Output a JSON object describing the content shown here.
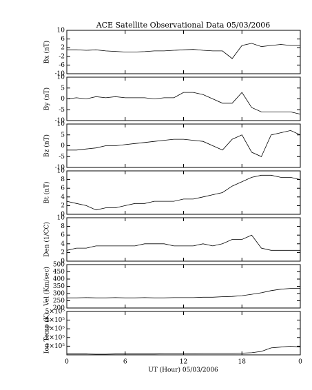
{
  "title": "ACE Satellite Observational Data   05/03/2006",
  "xlabel": "UT (Hour)  05/03/2006",
  "xlim": [
    0,
    24
  ],
  "xticks": [
    0,
    6,
    12,
    18,
    {
      "value": 24,
      "label": "0"
    }
  ],
  "chart_data": [
    {
      "type": "line",
      "ylabel": "Bx (nT)",
      "ylim": [
        -10,
        10
      ],
      "yticks": [
        -10,
        -6,
        -2,
        2,
        6,
        10
      ],
      "x": [
        0,
        1,
        2,
        3,
        4,
        5,
        6,
        7,
        8,
        9,
        10,
        11,
        12,
        13,
        14,
        15,
        16,
        17,
        18,
        19,
        20,
        21,
        22,
        23,
        24
      ],
      "series": [
        {
          "color": "#000000",
          "values": [
            1,
            1,
            0.8,
            1,
            0.5,
            0.3,
            0,
            0,
            0.2,
            0.5,
            0.5,
            0.8,
            1,
            1.2,
            0.8,
            0.5,
            0.5,
            -3,
            3,
            4,
            2.5,
            3,
            3.5,
            3,
            3
          ]
        }
      ]
    },
    {
      "type": "line",
      "ylabel": "By (nT)",
      "ylim": [
        -10,
        10
      ],
      "yticks": [
        -10,
        -5,
        0,
        5,
        10
      ],
      "x": [
        0,
        1,
        2,
        3,
        4,
        5,
        6,
        7,
        8,
        9,
        10,
        11,
        12,
        13,
        14,
        15,
        16,
        17,
        18,
        19,
        20,
        21,
        22,
        23,
        24
      ],
      "series": [
        {
          "color": "#000000",
          "values": [
            0,
            0.5,
            0,
            1,
            0.5,
            1,
            0.5,
            0.5,
            0.5,
            0,
            0.5,
            0.5,
            3,
            3,
            2,
            0,
            -2,
            -2,
            3,
            -4,
            -6,
            -6,
            -6,
            -6,
            -7
          ]
        }
      ]
    },
    {
      "type": "line",
      "ylabel": "Bz (nT)",
      "ylim": [
        -10,
        10
      ],
      "yticks": [
        -10,
        -5,
        0,
        5,
        10
      ],
      "x": [
        0,
        1,
        2,
        3,
        4,
        5,
        6,
        7,
        8,
        9,
        10,
        11,
        12,
        13,
        14,
        15,
        16,
        17,
        18,
        19,
        20,
        21,
        22,
        23,
        24
      ],
      "series": [
        {
          "color": "#000000",
          "values": [
            -2,
            -2,
            -1.5,
            -1,
            0,
            0,
            0.5,
            1,
            1.5,
            2,
            2.5,
            3,
            3,
            2.5,
            2,
            0,
            -2,
            3,
            5,
            -3,
            -5,
            5,
            6,
            7,
            5
          ]
        }
      ]
    },
    {
      "type": "line",
      "ylabel": "Bt (nT)",
      "ylim": [
        0,
        10
      ],
      "yticks": [
        0,
        2,
        4,
        6,
        8,
        10
      ],
      "x": [
        0,
        1,
        2,
        3,
        4,
        5,
        6,
        7,
        8,
        9,
        10,
        11,
        12,
        13,
        14,
        15,
        16,
        17,
        18,
        19,
        20,
        21,
        22,
        23,
        24
      ],
      "series": [
        {
          "color": "#000000",
          "values": [
            3,
            2.5,
            2,
            1,
            1.5,
            1.5,
            2,
            2.5,
            2.5,
            3,
            3,
            3,
            3.5,
            3.5,
            4,
            4.5,
            5,
            6.5,
            7.5,
            8.5,
            9,
            9,
            8.5,
            8.5,
            8
          ]
        }
      ]
    },
    {
      "type": "line",
      "ylabel": "Den (1/CC)",
      "ylim": [
        0,
        10
      ],
      "yticks": [
        0,
        2,
        4,
        6,
        8,
        10
      ],
      "x": [
        0,
        1,
        2,
        3,
        4,
        5,
        6,
        7,
        8,
        9,
        10,
        11,
        12,
        13,
        14,
        15,
        16,
        17,
        18,
        19,
        20,
        21,
        22,
        23,
        24
      ],
      "series": [
        {
          "color": "#000000",
          "values": [
            2.5,
            3,
            3,
            3.5,
            3.5,
            3.5,
            3.5,
            3.5,
            4,
            4,
            4,
            3.5,
            3.5,
            3.5,
            4,
            3.5,
            4,
            5,
            5,
            6,
            3,
            2.5,
            2.5,
            2.5,
            2.5
          ]
        }
      ]
    },
    {
      "type": "line",
      "ylabel": "Vel (Km/sec)",
      "ylim": [
        200,
        500
      ],
      "yticks": [
        200,
        250,
        300,
        350,
        400,
        450,
        500
      ],
      "x": [
        0,
        1,
        2,
        3,
        4,
        5,
        6,
        7,
        8,
        9,
        10,
        11,
        12,
        13,
        14,
        15,
        16,
        17,
        18,
        19,
        20,
        21,
        22,
        23,
        24
      ],
      "series": [
        {
          "color": "#000000",
          "values": [
            270,
            270,
            272,
            270,
            270,
            272,
            270,
            270,
            272,
            270,
            270,
            272,
            272,
            272,
            275,
            275,
            278,
            280,
            285,
            295,
            305,
            320,
            330,
            335,
            335
          ]
        }
      ]
    },
    {
      "type": "line",
      "ylabel": "Ion Temp (K)",
      "ylim": [
        0,
        500000
      ],
      "yticks": [
        {
          "value": 100000,
          "label": "1×10⁵"
        },
        {
          "value": 200000,
          "label": "2×10⁵"
        },
        {
          "value": 300000,
          "label": "3×10⁵"
        },
        {
          "value": 400000,
          "label": "4×10⁵"
        },
        {
          "value": 500000,
          "label": "5×10⁵"
        }
      ],
      "x": [
        0,
        1,
        2,
        3,
        4,
        5,
        6,
        7,
        8,
        9,
        10,
        11,
        12,
        13,
        14,
        15,
        16,
        17,
        18,
        19,
        20,
        21,
        22,
        23,
        24
      ],
      "series": [
        {
          "color": "#000000",
          "values": [
            10000,
            10000,
            10000,
            8000,
            8000,
            10000,
            10000,
            10000,
            10000,
            10000,
            12000,
            12000,
            12000,
            12000,
            15000,
            15000,
            15000,
            15000,
            20000,
            25000,
            40000,
            80000,
            90000,
            100000,
            90000
          ]
        }
      ]
    }
  ]
}
